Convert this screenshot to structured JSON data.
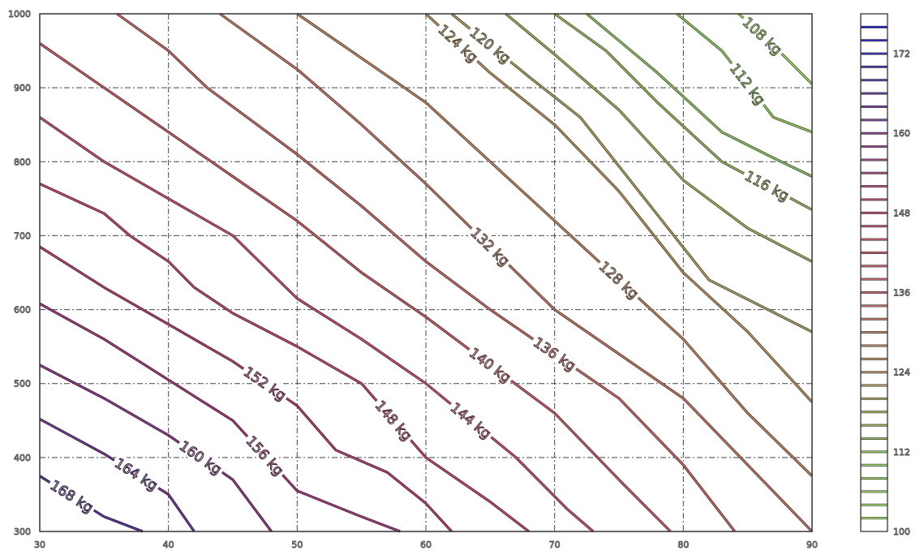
{
  "chart_data": {
    "type": "contour",
    "title": "",
    "xlabel": "",
    "ylabel": "",
    "xlim": [
      30,
      90
    ],
    "ylim": [
      300,
      1000
    ],
    "xticks": [
      "30",
      "40",
      "50",
      "60",
      "70",
      "80",
      "90"
    ],
    "yticks": [
      "300",
      "400",
      "500",
      "600",
      "700",
      "800",
      "900",
      "1000"
    ],
    "grid": true,
    "unit": "kg",
    "colorbar": {
      "range": [
        100,
        178
      ],
      "ticks": [
        "100",
        "112",
        "124",
        "136",
        "148",
        "160",
        "172"
      ],
      "level_step": 2
    },
    "levels": [
      {
        "value": 108,
        "label": "108 kg",
        "color": "#a2d86a",
        "points": [
          [
            84.3,
            1000
          ],
          [
            88,
            940
          ],
          [
            90,
            905
          ]
        ]
      },
      {
        "value": 112,
        "label": "112 kg",
        "color": "#98cc6a",
        "points": [
          [
            79.5,
            1000
          ],
          [
            83,
            950
          ],
          [
            87,
            860
          ],
          [
            90,
            840
          ]
        ]
      },
      {
        "value": 114,
        "label": "",
        "color": "#96c46c",
        "points": [
          [
            72.5,
            1000
          ],
          [
            78,
            920
          ],
          [
            83,
            840
          ],
          [
            87,
            805
          ],
          [
            90,
            780
          ]
        ]
      },
      {
        "value": 116,
        "label": "116 kg",
        "color": "#9ab868",
        "points": [
          [
            70,
            1000
          ],
          [
            74,
            950
          ],
          [
            78,
            880
          ],
          [
            83,
            800
          ],
          [
            90,
            735
          ]
        ]
      },
      {
        "value": 118,
        "label": "",
        "color": "#a8b06a",
        "points": [
          [
            66.2,
            1000
          ],
          [
            70,
            945
          ],
          [
            75,
            870
          ],
          [
            80,
            775
          ],
          [
            85,
            710
          ],
          [
            90,
            665
          ]
        ]
      },
      {
        "value": 120,
        "label": "120 kg",
        "color": "#b0a46a",
        "points": [
          [
            62,
            1000
          ],
          [
            68,
            915
          ],
          [
            72,
            860
          ],
          [
            77,
            750
          ],
          [
            82,
            640
          ],
          [
            90,
            570
          ]
        ]
      },
      {
        "value": 124,
        "label": "124 kg",
        "color": "#b89868",
        "points": [
          [
            60,
            1000
          ],
          [
            65,
            920
          ],
          [
            70,
            850
          ],
          [
            75,
            760
          ],
          [
            80,
            650
          ],
          [
            85,
            570
          ],
          [
            90,
            475
          ]
        ]
      },
      {
        "value": 128,
        "label": "128 kg",
        "color": "#bc8a6a",
        "points": [
          [
            50,
            1000
          ],
          [
            55,
            940
          ],
          [
            60,
            880
          ],
          [
            65,
            800
          ],
          [
            70,
            720
          ],
          [
            80,
            560
          ],
          [
            85,
            460
          ],
          [
            90,
            375
          ]
        ]
      },
      {
        "value": 132,
        "label": "132 kg",
        "color": "#c07c6c",
        "points": [
          [
            44,
            1000
          ],
          [
            50,
            925
          ],
          [
            55,
            850
          ],
          [
            60,
            770
          ],
          [
            70,
            600
          ],
          [
            80,
            480
          ],
          [
            90,
            300
          ]
        ]
      },
      {
        "value": 136,
        "label": "136 kg",
        "color": "#c4706c",
        "points": [
          [
            36,
            1000
          ],
          [
            40,
            950
          ],
          [
            43,
            900
          ],
          [
            50,
            810
          ],
          [
            55,
            740
          ],
          [
            60,
            665
          ],
          [
            65,
            600
          ],
          [
            75,
            480
          ],
          [
            80,
            390
          ],
          [
            84,
            300
          ]
        ]
      },
      {
        "value": 140,
        "label": "140 kg",
        "color": "#c4646c",
        "points": [
          [
            30,
            960
          ],
          [
            35,
            900
          ],
          [
            40,
            840
          ],
          [
            45,
            780
          ],
          [
            50,
            720
          ],
          [
            55,
            650
          ],
          [
            60,
            590
          ],
          [
            70,
            460
          ],
          [
            75,
            370
          ],
          [
            79,
            300
          ]
        ]
      },
      {
        "value": 144,
        "label": "144 kg",
        "color": "#c25870",
        "points": [
          [
            30,
            860
          ],
          [
            35,
            800
          ],
          [
            40,
            750
          ],
          [
            45,
            700
          ],
          [
            50,
            615
          ],
          [
            55,
            560
          ],
          [
            60,
            500
          ],
          [
            67,
            400
          ],
          [
            71,
            330
          ],
          [
            73,
            300
          ]
        ]
      },
      {
        "value": 148,
        "label": "148 kg",
        "color": "#bc5074",
        "points": [
          [
            30,
            770
          ],
          [
            35,
            730
          ],
          [
            37,
            700
          ],
          [
            40,
            665
          ],
          [
            42,
            630
          ],
          [
            45,
            595
          ],
          [
            50,
            550
          ],
          [
            55,
            500
          ],
          [
            60,
            400
          ],
          [
            65,
            340
          ],
          [
            68,
            300
          ]
        ]
      },
      {
        "value": 152,
        "label": "152 kg",
        "color": "#b04878",
        "points": [
          [
            30,
            685
          ],
          [
            35,
            630
          ],
          [
            40,
            580
          ],
          [
            45,
            530
          ],
          [
            50,
            470
          ],
          [
            53,
            410
          ],
          [
            57,
            380
          ],
          [
            60,
            338
          ],
          [
            62,
            300
          ]
        ]
      },
      {
        "value": 156,
        "label": "156 kg",
        "color": "#a0447e",
        "points": [
          [
            30,
            608
          ],
          [
            35,
            560
          ],
          [
            40,
            505
          ],
          [
            45,
            450
          ],
          [
            50,
            355
          ],
          [
            55,
            320
          ],
          [
            58,
            300
          ]
        ]
      },
      {
        "value": 160,
        "label": "160 kg",
        "color": "#8c4486",
        "points": [
          [
            30,
            525
          ],
          [
            35,
            480
          ],
          [
            40,
            430
          ],
          [
            45,
            370
          ],
          [
            48,
            300
          ]
        ]
      },
      {
        "value": 164,
        "label": "164 kg",
        "color": "#76408e",
        "points": [
          [
            30,
            452
          ],
          [
            35,
            405
          ],
          [
            40,
            350
          ],
          [
            42,
            300
          ]
        ]
      },
      {
        "value": 168,
        "label": "168 kg",
        "color": "#603c96",
        "points": [
          [
            30,
            375
          ],
          [
            35,
            320
          ],
          [
            38,
            300
          ]
        ]
      }
    ]
  }
}
